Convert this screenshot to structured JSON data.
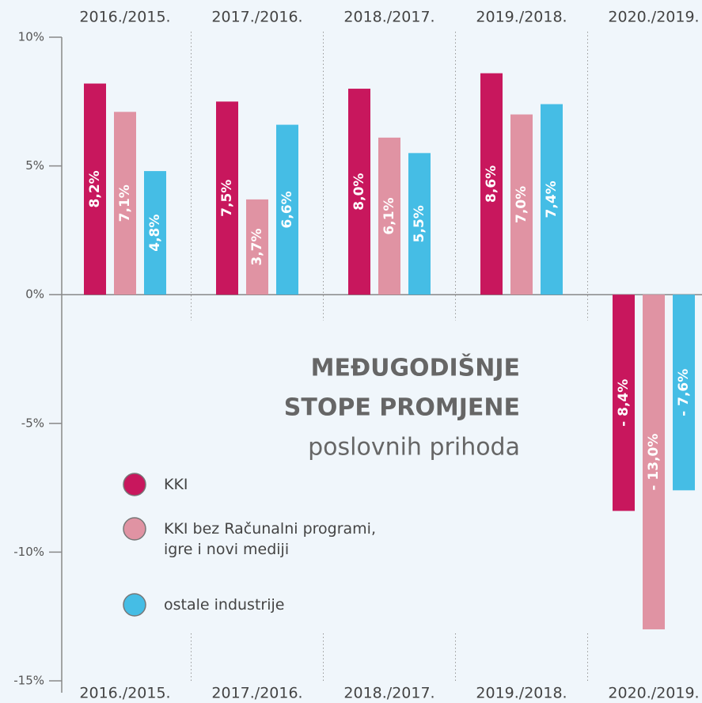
{
  "chart_data": {
    "type": "bar",
    "title": [
      "MEĐUGODIŠNJE",
      "STOPE PROMJENE",
      "poslovnih prihoda"
    ],
    "categories": [
      "2016./2015.",
      "2017./2016.",
      "2018./2017.",
      "2019./2018.",
      "2020./2019."
    ],
    "series": [
      {
        "name": "KKI",
        "color": "#c8175d",
        "values": [
          8.2,
          7.5,
          8.0,
          8.6,
          -8.4
        ],
        "value_labels": [
          "8,2%",
          "7,5%",
          "8,0%",
          "8,6%",
          "- 8,4%"
        ]
      },
      {
        "name": "KKI bez Računalni programi, igre i novi mediji",
        "color": "#e093a3",
        "values": [
          7.1,
          3.7,
          6.1,
          7.0,
          -13.0
        ],
        "value_labels": [
          "7,1%",
          "3,7%",
          "6,1%",
          "7,0%",
          "- 13,0%"
        ]
      },
      {
        "name": "ostale industrije",
        "color": "#45bde5",
        "values": [
          4.8,
          6.6,
          5.5,
          7.4,
          -7.6
        ],
        "value_labels": [
          "4,8%",
          "6,6%",
          "5,5%",
          "7,4%",
          "- 7,6%"
        ]
      }
    ],
    "ylim": [
      -15,
      10
    ],
    "yticks": [
      {
        "value": 10,
        "label": "10%"
      },
      {
        "value": 5,
        "label": "5%"
      },
      {
        "value": 0,
        "label": "0%"
      },
      {
        "value": -5,
        "label": "-5%"
      },
      {
        "value": -10,
        "label": "-10%"
      },
      {
        "value": -15,
        "label": "-15%"
      }
    ],
    "grid": false
  }
}
